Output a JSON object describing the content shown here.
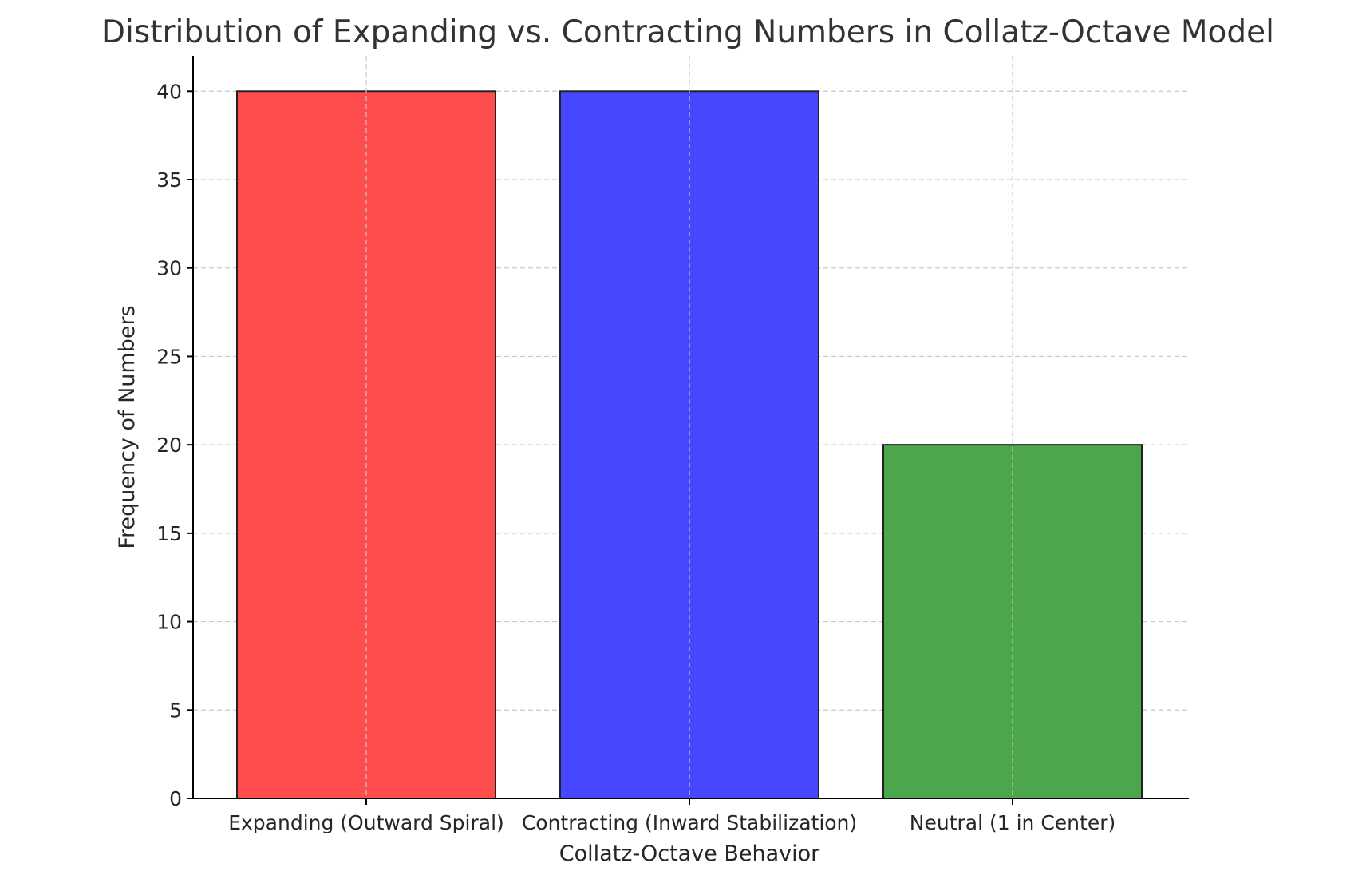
{
  "chart_data": {
    "type": "bar",
    "title": "Distribution of Expanding vs. Contracting Numbers in Collatz-Octave Model",
    "xlabel": "Collatz-Octave Behavior",
    "ylabel": "Frequency of Numbers",
    "categories": [
      "Expanding (Outward Spiral)",
      "Contracting (Inward Stabilization)",
      "Neutral (1 in Center)"
    ],
    "values": [
      40,
      40,
      20
    ],
    "colors": [
      "#ff4d4d",
      "#4747ff",
      "#4ca64c"
    ],
    "ylim": [
      0,
      42
    ],
    "yticks": [
      0,
      5,
      10,
      15,
      20,
      25,
      30,
      35,
      40
    ],
    "grid": true
  }
}
